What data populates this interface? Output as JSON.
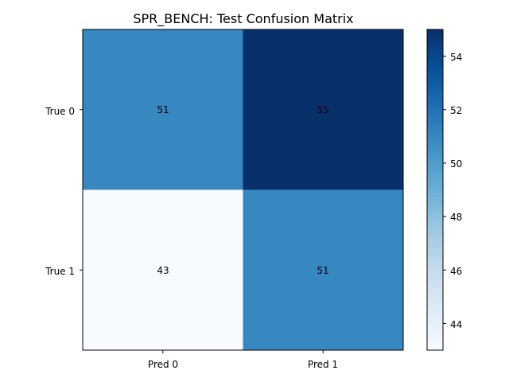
{
  "chart_data": {
    "type": "heatmap",
    "title": "SPR_BENCH: Test Confusion Matrix",
    "row_labels": [
      "True 0",
      "True 1"
    ],
    "col_labels": [
      "Pred 0",
      "Pred 1"
    ],
    "values": [
      [
        51,
        55
      ],
      [
        43,
        51
      ]
    ],
    "cell_labels": [
      [
        "51",
        "55"
      ],
      [
        "43",
        "51"
      ]
    ],
    "colormap": "Blues",
    "colorbar": {
      "range": [
        43,
        55
      ],
      "ticks": [
        44,
        46,
        48,
        50,
        52,
        54
      ],
      "tick_labels": [
        "44",
        "46",
        "48",
        "50",
        "52",
        "54"
      ]
    },
    "grid": false
  }
}
